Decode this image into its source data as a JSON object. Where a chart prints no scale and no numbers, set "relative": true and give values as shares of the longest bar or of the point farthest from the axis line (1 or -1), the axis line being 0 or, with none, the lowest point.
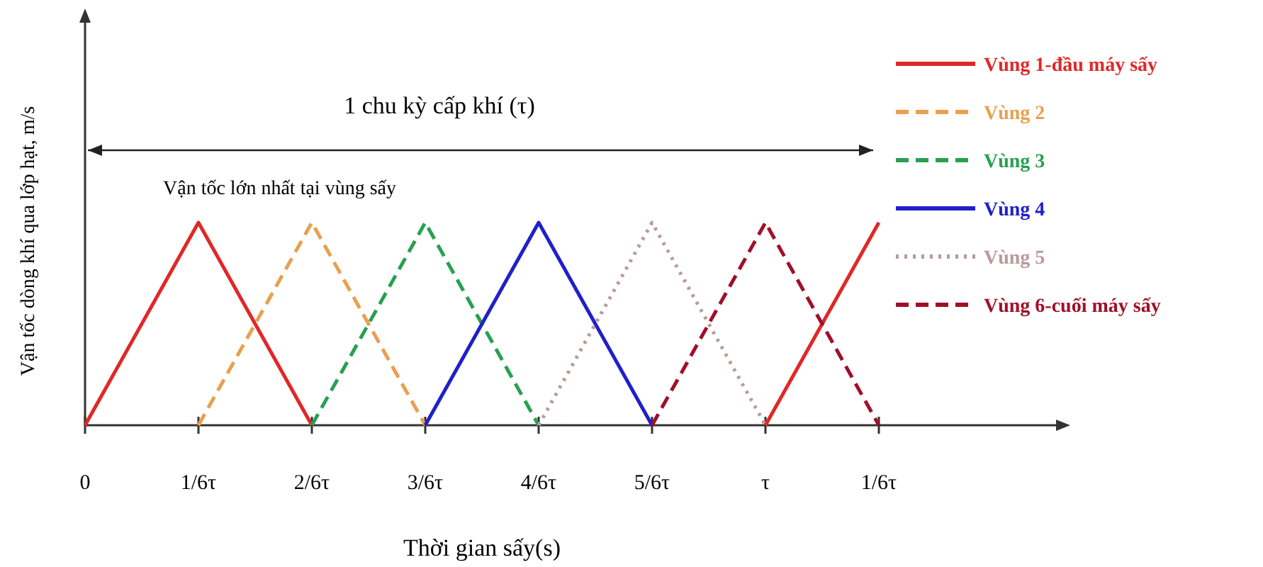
{
  "chart_data": {
    "type": "line",
    "relative": true,
    "xlabel": "Thời gian sấy(s)",
    "ylabel": "Vận tốc dòng khí qua lớp hạt, m/s",
    "categories": [
      "0",
      "1/6τ",
      "2/6τ",
      "3/6τ",
      "4/6τ",
      "5/6τ",
      "τ",
      "1/6τ"
    ],
    "annotations": [
      "1 chu kỳ cấp khí (τ)",
      "Vận tốc lớn nhất tại vùng sấy"
    ],
    "legend": "right",
    "marker": "none",
    "series": [
      {
        "name": "Vùng 1-đầu máy sấy",
        "color": "#e02828",
        "line_style": "solid",
        "values": [
          0,
          1,
          0,
          null,
          null,
          null,
          0,
          1
        ]
      },
      {
        "name": "Vùng 2",
        "color": "#e8a050",
        "line_style": "dashed",
        "values": [
          null,
          0,
          1,
          0,
          null,
          null,
          null,
          null
        ]
      },
      {
        "name": "Vùng 3",
        "color": "#28a050",
        "line_style": "dashed",
        "values": [
          null,
          null,
          0,
          1,
          0,
          null,
          null,
          null
        ]
      },
      {
        "name": "Vùng 4",
        "color": "#2020c8",
        "line_style": "solid",
        "values": [
          null,
          null,
          null,
          0,
          1,
          0,
          null,
          null
        ]
      },
      {
        "name": "Vùng 5",
        "color": "#b89a9a",
        "line_style": "dotted",
        "values": [
          null,
          null,
          null,
          null,
          0,
          1,
          0,
          null
        ]
      },
      {
        "name": "Vùng 6-cuối máy sấy",
        "color": "#a01028",
        "line_style": "dashed",
        "values": [
          null,
          null,
          null,
          null,
          null,
          0,
          1,
          0
        ]
      }
    ]
  }
}
